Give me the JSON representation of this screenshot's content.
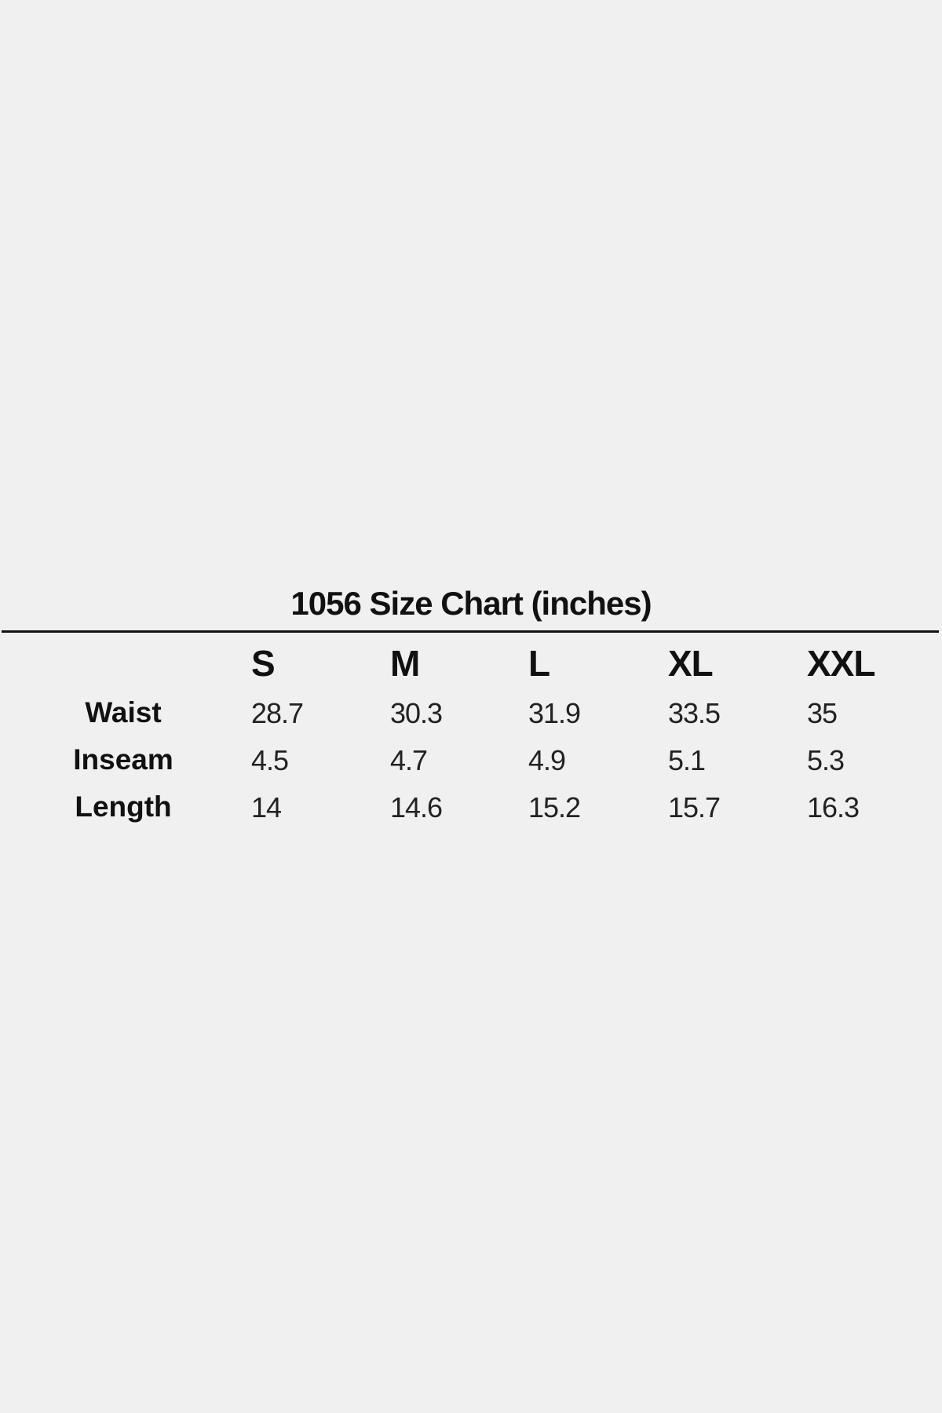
{
  "title": "1056 Size Chart (inches)",
  "sizes": [
    "S",
    "M",
    "L",
    "XL",
    "XXL"
  ],
  "rows": [
    {
      "label": "Waist",
      "values": [
        "28.7",
        "30.3",
        "31.9",
        "33.5",
        "35"
      ]
    },
    {
      "label": "Inseam",
      "values": [
        "4.5",
        "4.7",
        "4.9",
        "5.1",
        "5.3"
      ]
    },
    {
      "label": "Length",
      "values": [
        "14",
        "14.6",
        "15.2",
        "15.7",
        "16.3"
      ]
    }
  ]
}
